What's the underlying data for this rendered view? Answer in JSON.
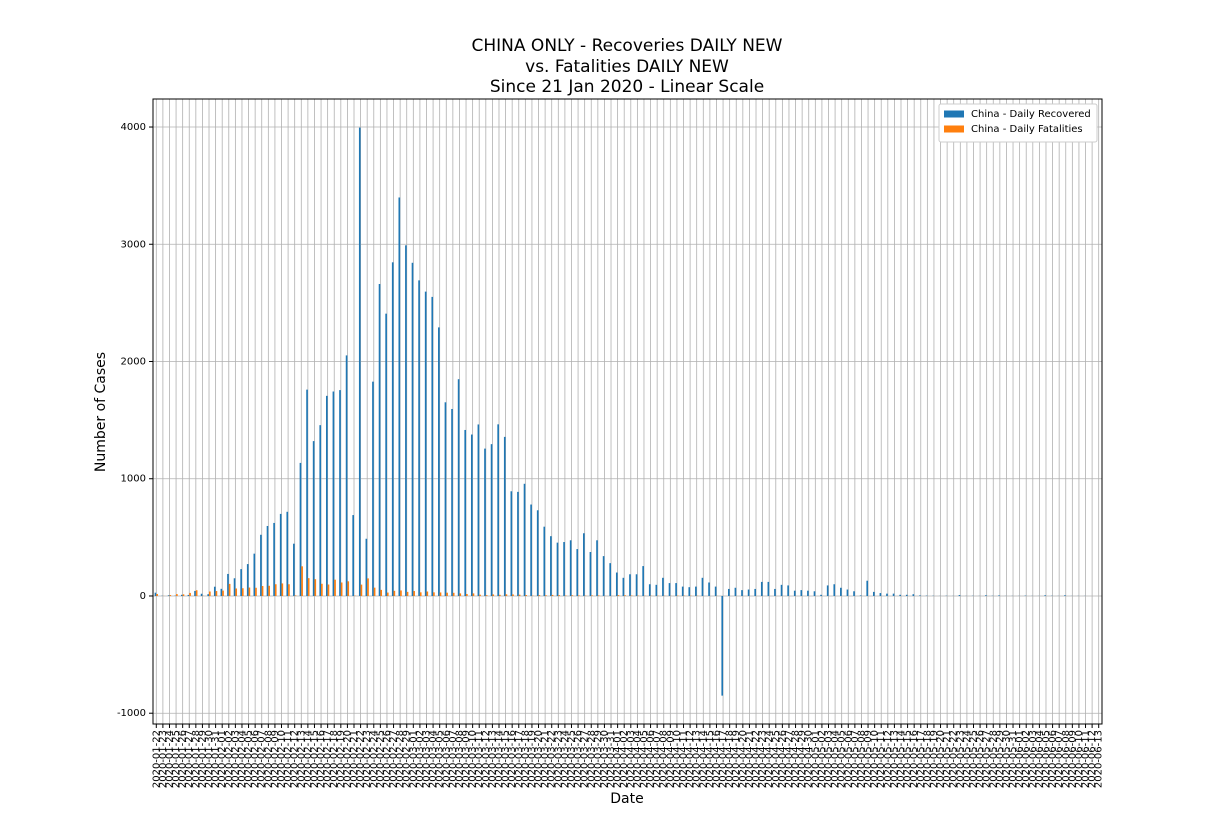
{
  "chart_data": {
    "type": "bar",
    "title": [
      "CHINA ONLY - Recoveries DAILY NEW",
      "vs. Fatalities DAILY NEW",
      "Since 21 Jan 2020 - Linear Scale"
    ],
    "x_label": "Date",
    "y_label": "Number of Cases",
    "categories": [
      "2020-01-22",
      "2020-01-23",
      "2020-01-24",
      "2020-01-25",
      "2020-01-26",
      "2020-01-27",
      "2020-01-28",
      "2020-01-29",
      "2020-01-30",
      "2020-01-31",
      "2020-02-01",
      "2020-02-02",
      "2020-02-03",
      "2020-02-04",
      "2020-02-05",
      "2020-02-06",
      "2020-02-07",
      "2020-02-08",
      "2020-02-09",
      "2020-02-10",
      "2020-02-11",
      "2020-02-12",
      "2020-02-13",
      "2020-02-14",
      "2020-02-15",
      "2020-02-16",
      "2020-02-17",
      "2020-02-18",
      "2020-02-19",
      "2020-02-20",
      "2020-02-21",
      "2020-02-22",
      "2020-02-23",
      "2020-02-24",
      "2020-02-25",
      "2020-02-26",
      "2020-02-27",
      "2020-02-28",
      "2020-02-29",
      "2020-03-01",
      "2020-03-02",
      "2020-03-03",
      "2020-03-04",
      "2020-03-05",
      "2020-03-06",
      "2020-03-07",
      "2020-03-08",
      "2020-03-09",
      "2020-03-10",
      "2020-03-11",
      "2020-03-12",
      "2020-03-13",
      "2020-03-14",
      "2020-03-15",
      "2020-03-16",
      "2020-03-17",
      "2020-03-18",
      "2020-03-19",
      "2020-03-20",
      "2020-03-21",
      "2020-03-22",
      "2020-03-23",
      "2020-03-24",
      "2020-03-25",
      "2020-03-26",
      "2020-03-27",
      "2020-03-28",
      "2020-03-29",
      "2020-03-30",
      "2020-03-31",
      "2020-04-01",
      "2020-04-02",
      "2020-04-03",
      "2020-04-04",
      "2020-04-05",
      "2020-04-06",
      "2020-04-07",
      "2020-04-08",
      "2020-04-09",
      "2020-04-10",
      "2020-04-11",
      "2020-04-12",
      "2020-04-13",
      "2020-04-14",
      "2020-04-15",
      "2020-04-16",
      "2020-04-17",
      "2020-04-18",
      "2020-04-19",
      "2020-04-20",
      "2020-04-21",
      "2020-04-22",
      "2020-04-23",
      "2020-04-24",
      "2020-04-25",
      "2020-04-26",
      "2020-04-27",
      "2020-04-28",
      "2020-04-29",
      "2020-04-30",
      "2020-05-01",
      "2020-05-02",
      "2020-05-03",
      "2020-05-04",
      "2020-05-05",
      "2020-05-06",
      "2020-05-07",
      "2020-05-08",
      "2020-05-09",
      "2020-05-10",
      "2020-05-11",
      "2020-05-12",
      "2020-05-13",
      "2020-05-14",
      "2020-05-15",
      "2020-05-16",
      "2020-05-17",
      "2020-05-18",
      "2020-05-19",
      "2020-05-20",
      "2020-05-21",
      "2020-05-22",
      "2020-05-23",
      "2020-05-24",
      "2020-05-25",
      "2020-05-26",
      "2020-05-27",
      "2020-05-28",
      "2020-05-29",
      "2020-05-30",
      "2020-05-31",
      "2020-06-01",
      "2020-06-02",
      "2020-06-03",
      "2020-06-04",
      "2020-06-05",
      "2020-06-06",
      "2020-06-07",
      "2020-06-08",
      "2020-06-09",
      "2020-06-10",
      "2020-06-11",
      "2020-06-12",
      "2020-06-13"
    ],
    "series": [
      {
        "name": "China - Daily Recovered",
        "color": "#1f77b4",
        "values": [
          28,
          2,
          6,
          3,
          10,
          9,
          43,
          19,
          15,
          79,
          61,
          188,
          151,
          229,
          272,
          361,
          522,
          597,
          623,
          700,
          718,
          446,
          1135,
          1760,
          1321,
          1457,
          1707,
          1744,
          1756,
          2052,
          690,
          3995,
          488,
          1828,
          2661,
          2408,
          2846,
          3399,
          2991,
          2842,
          2692,
          2596,
          2551,
          2291,
          1652,
          1595,
          1849,
          1416,
          1377,
          1463,
          1257,
          1295,
          1464,
          1357,
          893,
          888,
          957,
          780,
          731,
          591,
          510,
          455,
          460,
          475,
          400,
          535,
          375,
          475,
          340,
          280,
          200,
          155,
          185,
          185,
          255,
          100,
          95,
          155,
          110,
          110,
          80,
          75,
          80,
          155,
          115,
          80,
          -850,
          60,
          70,
          50,
          55,
          60,
          120,
          120,
          60,
          95,
          90,
          45,
          50,
          45,
          40,
          10,
          90,
          100,
          70,
          55,
          40,
          5,
          130,
          35,
          25,
          20,
          20,
          10,
          10,
          15,
          5,
          3,
          2,
          1,
          2,
          1,
          8,
          1,
          2,
          1,
          6,
          2,
          5,
          1,
          1,
          1,
          3,
          1,
          1,
          6,
          2,
          1,
          6,
          1,
          1,
          1,
          0,
          0
        ]
      },
      {
        "name": "China - Daily Fatalities",
        "color": "#ff7f0e",
        "values": [
          17,
          1,
          8,
          16,
          14,
          26,
          49,
          2,
          38,
          42,
          46,
          103,
          64,
          66,
          72,
          70,
          85,
          87,
          100,
          107,
          100,
          5,
          253,
          152,
          143,
          104,
          98,
          139,
          115,
          125,
          3,
          97,
          150,
          71,
          52,
          29,
          44,
          47,
          35,
          42,
          31,
          38,
          31,
          30,
          28,
          27,
          22,
          17,
          22,
          11,
          7,
          13,
          10,
          14,
          13,
          11,
          8,
          3,
          7,
          6,
          9,
          7,
          4,
          6,
          5,
          3,
          5,
          5,
          1,
          1,
          7,
          6,
          4,
          3,
          2,
          2,
          2,
          2,
          1,
          3,
          3,
          2,
          2,
          0,
          0,
          1,
          0,
          0,
          0,
          0,
          0,
          0,
          0,
          0,
          0,
          0,
          0,
          0,
          0,
          0,
          0,
          0,
          0,
          0,
          0,
          0,
          0,
          0,
          0,
          0,
          0,
          0,
          0,
          0,
          0,
          0,
          0,
          0,
          0,
          0,
          0,
          0,
          0,
          0,
          0,
          0,
          0,
          0,
          0,
          0,
          0,
          0,
          0,
          0,
          0,
          0,
          0,
          0,
          0,
          0,
          0,
          0,
          0,
          0
        ]
      }
    ],
    "ylim": [
      -1092,
      4239
    ],
    "yticks": [
      -1000,
      0,
      1000,
      2000,
      3000,
      4000
    ],
    "grid": true,
    "legend": "upper right"
  }
}
